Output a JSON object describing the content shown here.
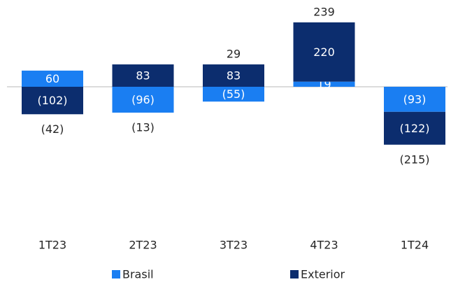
{
  "chart_data": {
    "type": "bar",
    "stacked": true,
    "categories": [
      "1T23",
      "2T23",
      "3T23",
      "4T23",
      "1T24"
    ],
    "series": [
      {
        "name": "Brasil",
        "color": "#1a7ef2",
        "values": [
          60,
          -96,
          -55,
          19,
          -93
        ],
        "value_labels": [
          "60",
          "(96)",
          "(55)",
          "19",
          "(93)"
        ]
      },
      {
        "name": "Exterior",
        "color": "#0c2d6e",
        "values": [
          -102,
          83,
          83,
          220,
          -122
        ],
        "value_labels": [
          "(102)",
          "83",
          "83",
          "220",
          "(122)"
        ]
      }
    ],
    "totals": [
      -42,
      -13,
      29,
      239,
      -215
    ],
    "total_labels": [
      "(42)",
      "(13)",
      "29",
      "239",
      "(215)"
    ]
  }
}
